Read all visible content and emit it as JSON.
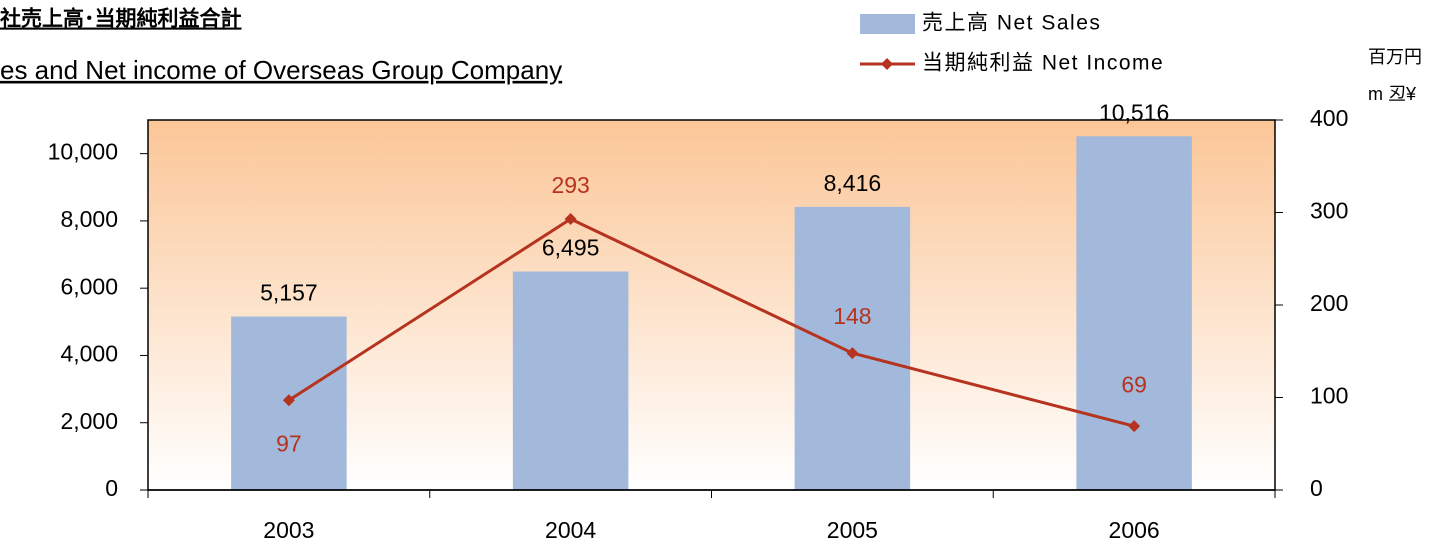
{
  "chart_data": {
    "type": "bar-line",
    "title": "社売上高･当期純利益合計",
    "subtitle": "es and Net income of Overseas Group Company",
    "y2_unit_labels": [
      "百万円",
      "m 丒¥"
    ],
    "categories": [
      "2003",
      "2004",
      "2005",
      "2006"
    ],
    "series": [
      {
        "name": "売上高 Net Sales",
        "type": "bar",
        "color": "#a3b9dc",
        "values": [
          5157,
          6495,
          8416,
          10516
        ],
        "value_labels": [
          "5,157",
          "6,495",
          "8,416",
          "10,516"
        ]
      },
      {
        "name": "当期純利益 Net Income",
        "type": "line",
        "axis": "y2",
        "color": "#b5331f",
        "values": [
          97,
          293,
          148,
          69
        ]
      }
    ],
    "ylim": [
      0,
      11000
    ],
    "yticks": [
      0,
      {
        "value": 2000,
        "label": "2,000"
      },
      {
        "value": 4000,
        "label": "4,000"
      },
      {
        "value": 6000,
        "label": "6,000"
      },
      {
        "value": 8000,
        "label": "8,000"
      },
      {
        "value": 10000,
        "label": "10,000"
      }
    ],
    "y2lim": [
      0,
      400
    ],
    "y2ticks": [
      0,
      100,
      200,
      300,
      400
    ]
  }
}
